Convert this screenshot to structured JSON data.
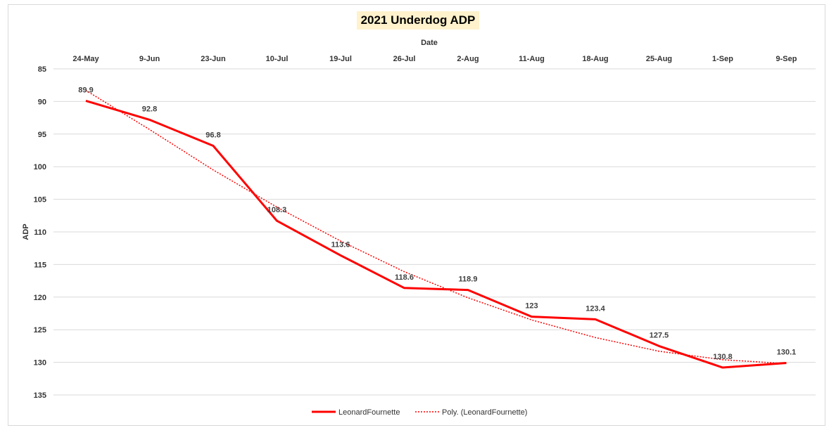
{
  "chart_data": {
    "type": "line",
    "title": "2021 Underdog ADP",
    "xlabel": "Date",
    "ylabel": "ADP",
    "categories": [
      "24-May",
      "9-Jun",
      "23-Jun",
      "10-Jul",
      "19-Jul",
      "26-Jul",
      "2-Aug",
      "11-Aug",
      "18-Aug",
      "25-Aug",
      "1-Sep",
      "9-Sep"
    ],
    "ylim": [
      85,
      135
    ],
    "y_reversed": true,
    "y_ticks": [
      85,
      90,
      95,
      100,
      105,
      110,
      115,
      120,
      125,
      130,
      135
    ],
    "grid": true,
    "legend_position": "bottom",
    "series": [
      {
        "name": "LeonardFournette",
        "values": [
          89.9,
          92.8,
          96.8,
          108.3,
          113.6,
          118.6,
          118.9,
          123,
          123.4,
          127.5,
          130.8,
          130.1
        ],
        "data_labels": [
          "89.9",
          "92.8",
          "96.8",
          "108.3",
          "113.6",
          "118.6",
          "118.9",
          "123",
          "123.4",
          "127.5",
          "130.8",
          "130.1"
        ],
        "color": "#ff0000",
        "style": "solid"
      },
      {
        "name": "Poly. (LeonardFournette)",
        "trendline": "polynomial",
        "values": [
          88.3,
          94.3,
          100.5,
          106.2,
          111.4,
          116.1,
          120.1,
          123.5,
          126.2,
          128.3,
          129.6,
          130.2
        ],
        "color": "#ff0000",
        "style": "dotted"
      }
    ]
  }
}
